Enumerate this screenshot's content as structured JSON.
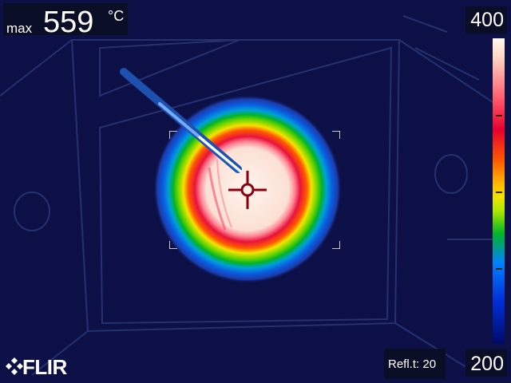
{
  "measurement": {
    "label": "max",
    "value": "559",
    "unit": "°C"
  },
  "scale": {
    "max": "400",
    "min": "200"
  },
  "reflected_temperature": {
    "label": "Refl.t:",
    "value": "20"
  },
  "brand": {
    "text": "FLIR"
  },
  "colors": {
    "background": "#0c1046",
    "hot": "#fff0e6",
    "ring_red": "#e8123c",
    "ring_yellow": "#f2e400",
    "ring_green": "#00b428",
    "halo_blue": "#0a5ce0",
    "crosshair": "#8a0010"
  },
  "icons": {
    "spot_meter": "crosshair-icon",
    "logo": "flir-diamond-icon"
  }
}
